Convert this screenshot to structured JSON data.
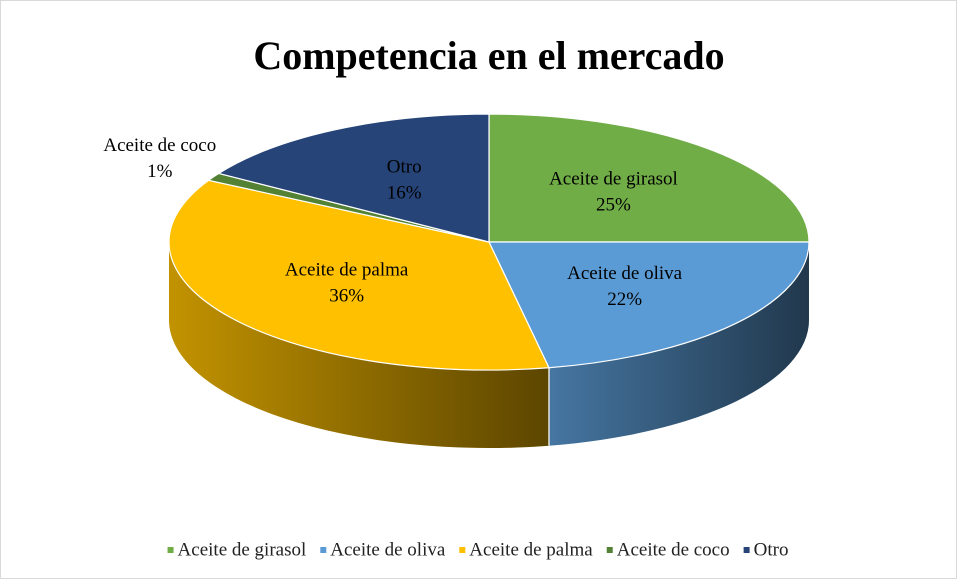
{
  "chart_data": {
    "type": "pie",
    "title": "Competencia en el mercado",
    "categories": [
      "Aceite de girasol",
      "Aceite de oliva",
      "Aceite de palma",
      "Aceite de coco",
      "Otro"
    ],
    "values": [
      25,
      22,
      36,
      1,
      16
    ],
    "value_labels": [
      "25%",
      "22%",
      "36%",
      "1%",
      "16%"
    ],
    "colors": [
      "#70ad47",
      "#5b9bd5",
      "#ffc000",
      "#548235",
      "#264478"
    ],
    "legend": "bottom"
  }
}
